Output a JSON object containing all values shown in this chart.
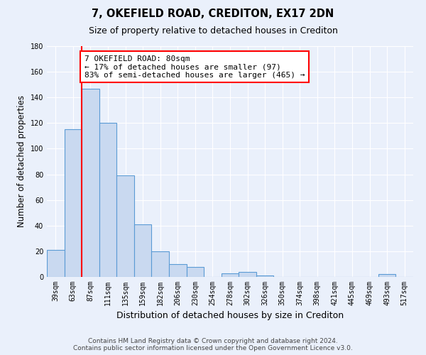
{
  "title": "7, OKEFIELD ROAD, CREDITON, EX17 2DN",
  "subtitle": "Size of property relative to detached houses in Crediton",
  "xlabel": "Distribution of detached houses by size in Crediton",
  "ylabel": "Number of detached properties",
  "bar_color": "#c9d9f0",
  "bar_edge_color": "#5b9bd5",
  "background_color": "#eaf0fb",
  "categories": [
    "39sqm",
    "63sqm",
    "87sqm",
    "111sqm",
    "135sqm",
    "159sqm",
    "182sqm",
    "206sqm",
    "230sqm",
    "254sqm",
    "278sqm",
    "302sqm",
    "326sqm",
    "350sqm",
    "374sqm",
    "398sqm",
    "421sqm",
    "445sqm",
    "469sqm",
    "493sqm",
    "517sqm"
  ],
  "values": [
    21,
    115,
    147,
    120,
    79,
    41,
    20,
    10,
    8,
    0,
    3,
    4,
    1,
    0,
    0,
    0,
    0,
    0,
    0,
    2,
    0
  ],
  "ylim": [
    0,
    180
  ],
  "yticks": [
    0,
    20,
    40,
    60,
    80,
    100,
    120,
    140,
    160,
    180
  ],
  "property_line_x": 1.5,
  "annotation_title": "7 OKEFIELD ROAD: 80sqm",
  "annotation_line1": "← 17% of detached houses are smaller (97)",
  "annotation_line2": "83% of semi-detached houses are larger (465) →",
  "footer_line1": "Contains HM Land Registry data © Crown copyright and database right 2024.",
  "footer_line2": "Contains public sector information licensed under the Open Government Licence v3.0.",
  "grid_color": "#ffffff",
  "title_fontsize": 10.5,
  "subtitle_fontsize": 9,
  "tick_fontsize": 7,
  "ylabel_fontsize": 8.5,
  "xlabel_fontsize": 9,
  "footer_fontsize": 6.5,
  "annotation_fontsize": 8
}
